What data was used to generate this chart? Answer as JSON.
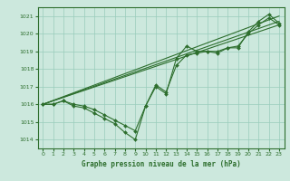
{
  "title": "Graphe pression niveau de la mer (hPa)",
  "bg_color": "#cce8dd",
  "grid_color": "#99ccbb",
  "line_color": "#2d6e2d",
  "marker_color": "#2d6e2d",
  "xlim": [
    -0.5,
    23.5
  ],
  "ylim": [
    1013.5,
    1021.5
  ],
  "yticks": [
    1014,
    1015,
    1016,
    1017,
    1018,
    1019,
    1020,
    1021
  ],
  "xticks": [
    0,
    1,
    2,
    3,
    4,
    5,
    6,
    7,
    8,
    9,
    10,
    11,
    12,
    13,
    14,
    15,
    16,
    17,
    18,
    19,
    20,
    21,
    22,
    23
  ],
  "series": [
    {
      "x": [
        0,
        1,
        2,
        3,
        4,
        5,
        6,
        7,
        8,
        9,
        10,
        11,
        12,
        13,
        14,
        15,
        16,
        17,
        18,
        19,
        20,
        21,
        22,
        23
      ],
      "y": [
        1016.0,
        1016.0,
        1016.2,
        1015.9,
        1015.8,
        1015.5,
        1015.2,
        1014.9,
        1014.4,
        1014.0,
        1015.9,
        1017.0,
        1016.6,
        1018.6,
        1019.3,
        1019.0,
        1019.0,
        1019.0,
        1019.2,
        1019.2,
        1020.1,
        1020.7,
        1021.1,
        1020.6
      ]
    },
    {
      "x": [
        0,
        23
      ],
      "y": [
        1016.0,
        1020.5
      ]
    },
    {
      "x": [
        0,
        23
      ],
      "y": [
        1016.0,
        1021.0
      ]
    },
    {
      "x": [
        0,
        23
      ],
      "y": [
        1016.0,
        1020.7
      ]
    },
    {
      "x": [
        0,
        1,
        2,
        3,
        4,
        5,
        6,
        7,
        8,
        9,
        10,
        11,
        12,
        13,
        14,
        15,
        16,
        17,
        18,
        19,
        20,
        21,
        22,
        23
      ],
      "y": [
        1016.0,
        1016.0,
        1016.2,
        1016.0,
        1015.9,
        1015.7,
        1015.4,
        1015.1,
        1014.8,
        1014.5,
        1015.9,
        1017.1,
        1016.7,
        1018.2,
        1018.8,
        1018.9,
        1019.0,
        1018.9,
        1019.2,
        1019.3,
        1020.0,
        1020.5,
        1020.9,
        1020.5
      ]
    }
  ]
}
